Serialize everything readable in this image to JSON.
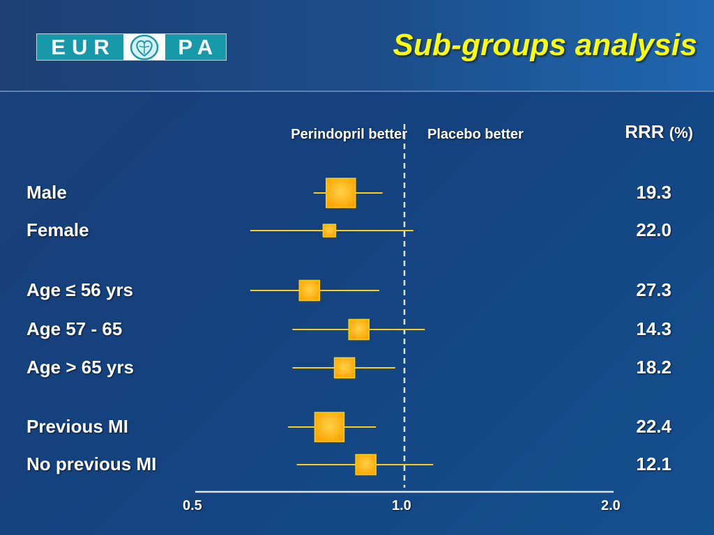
{
  "title": "Sub-groups analysis",
  "logo": {
    "left": "EUR",
    "right": "PA",
    "icon": "heart-globe-icon"
  },
  "colors": {
    "title": "#ffff00",
    "marker": "#ffa500",
    "marker_edge": "#ffd000",
    "ci_line": "#ffcc11",
    "reference_line": "#dfe5f0",
    "text": "#ffffff"
  },
  "chart_data": {
    "type": "forest",
    "x_scale": "log",
    "xlim": [
      0.5,
      2.0
    ],
    "x_ticks": [
      "0.5",
      "1.0",
      "2.0"
    ],
    "reference_value": 1.0,
    "left_label": "Perindopril better",
    "right_label": "Placebo better",
    "value_column_header": "RRR",
    "value_column_unit": "(%)",
    "grid": false,
    "rows": [
      {
        "label": "Male",
        "estimate": 0.81,
        "ci": [
          0.74,
          0.93
        ],
        "rrr": "19.3",
        "weight": 3
      },
      {
        "label": "Female",
        "estimate": 0.78,
        "ci": [
          0.6,
          1.03
        ],
        "rrr": "22.0",
        "weight": 1
      },
      {
        "label": "Age ≤ 56 yrs",
        "estimate": 0.73,
        "ci": [
          0.6,
          0.92
        ],
        "rrr": "27.3",
        "weight": 2
      },
      {
        "label": "Age 57 - 65",
        "estimate": 0.86,
        "ci": [
          0.69,
          1.07
        ],
        "rrr": "14.3",
        "weight": 2
      },
      {
        "label": "Age > 65 yrs",
        "estimate": 0.82,
        "ci": [
          0.69,
          0.97
        ],
        "rrr": "18.2",
        "weight": 2
      },
      {
        "label": "Previous MI",
        "estimate": 0.78,
        "ci": [
          0.68,
          0.91
        ],
        "rrr": "22.4",
        "weight": 3
      },
      {
        "label": "No previous MI",
        "estimate": 0.88,
        "ci": [
          0.7,
          1.1
        ],
        "rrr": "12.1",
        "weight": 2
      }
    ]
  }
}
